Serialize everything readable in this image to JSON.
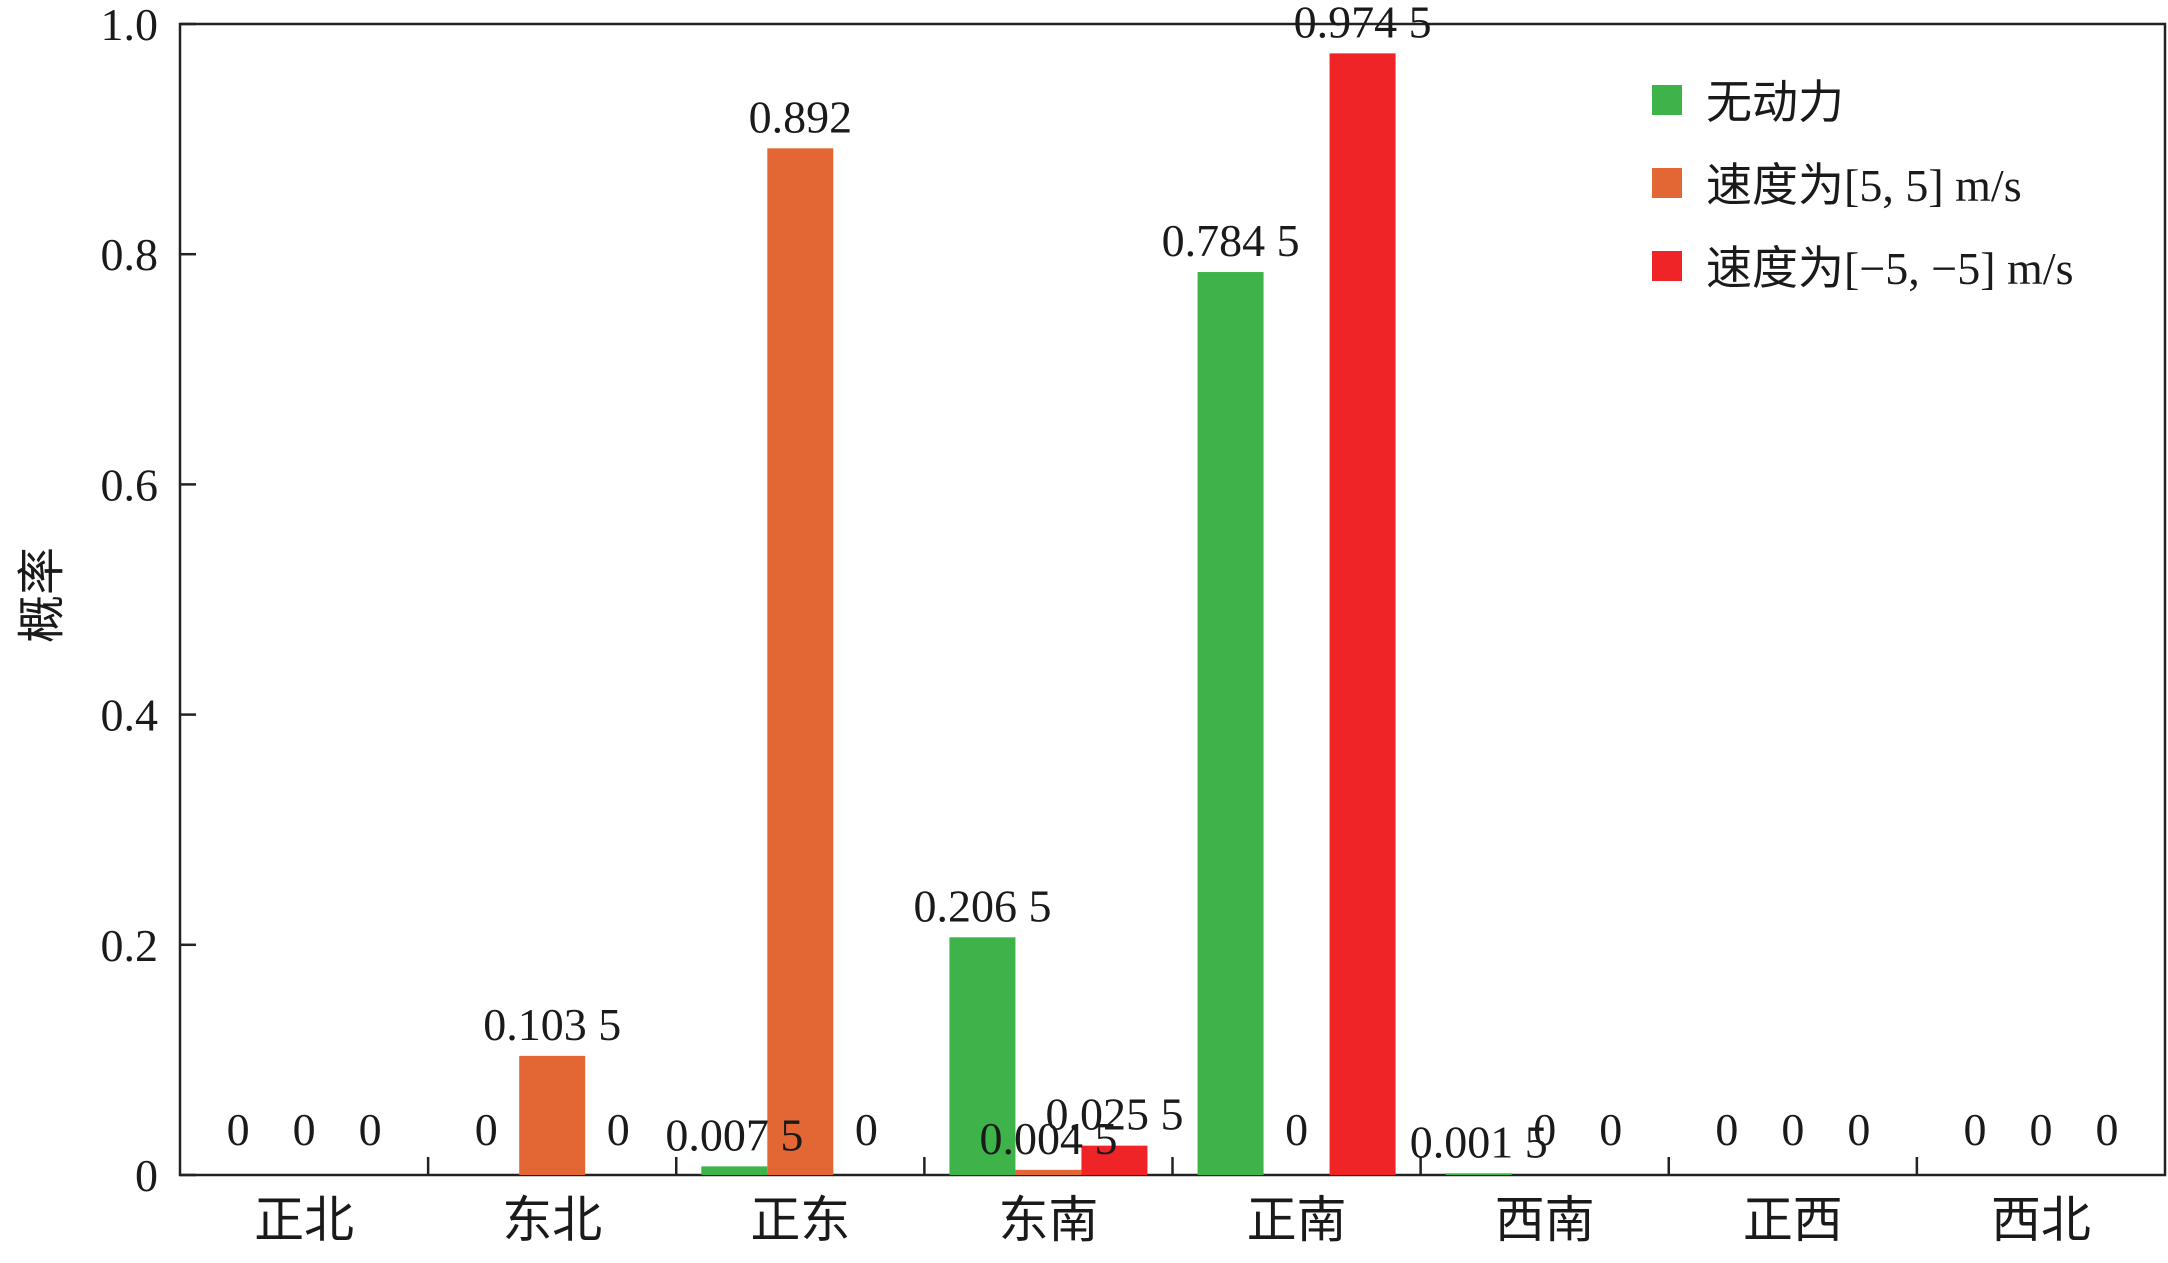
{
  "chart_data": {
    "type": "bar",
    "categories": [
      "正北",
      "东北",
      "正东",
      "东南",
      "正南",
      "西南",
      "正西",
      "西北"
    ],
    "series": [
      {
        "name": "无动力",
        "color": "#3db34a",
        "values": [
          0,
          0,
          0.0075,
          0.2065,
          0.7845,
          0.0015,
          0,
          0
        ],
        "labels": [
          "0",
          "0",
          "0.007 5",
          "0.206 5",
          "0.784 5",
          "0.001 5",
          "0",
          "0"
        ]
      },
      {
        "name": "速度为[5, 5] m/s",
        "color": "#e36734",
        "values": [
          0,
          0.1035,
          0.892,
          0.0045,
          0,
          0,
          0,
          0
        ],
        "labels": [
          "0",
          "0.103 5",
          "0.892",
          "0.004 5",
          "0",
          "0",
          "0",
          "0"
        ]
      },
      {
        "name": "速度为[−5, −5] m/s",
        "color": "#ee2427",
        "values": [
          0,
          0,
          0,
          0.0255,
          0.9745,
          0,
          0,
          0
        ],
        "labels": [
          "0",
          "0",
          "0",
          "0.025 5",
          "0.974 5",
          "0",
          "0",
          "0"
        ]
      }
    ],
    "ylabel": "概率",
    "ylim": [
      0,
      1.0
    ],
    "yticks": [
      0,
      0.2,
      0.4,
      0.6,
      0.8,
      1.0
    ],
    "ytick_labels": [
      "0",
      "0.2",
      "0.4",
      "0.6",
      "0.8",
      "1.0"
    ],
    "grid": false,
    "legend_position": "top-right"
  }
}
